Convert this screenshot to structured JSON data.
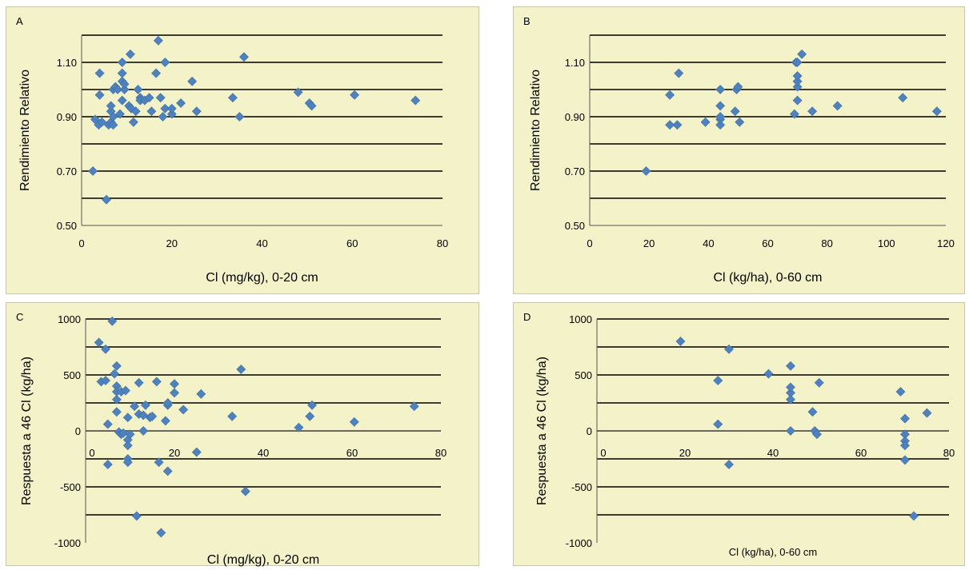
{
  "chart_data": [
    {
      "panel_label": "A",
      "type": "scatter",
      "xlabel": "Cl  (mg/kg), 0-20 cm",
      "ylabel": "Rendimiento Relativo",
      "xlim": [
        0,
        80
      ],
      "ylim": [
        0.5,
        1.2
      ],
      "xticks": [
        "0",
        "20",
        "40",
        "60",
        "80"
      ],
      "yticks": [
        "0.50",
        "0.70",
        "0.90",
        "1.10"
      ],
      "y_grid": [
        0.6,
        0.7,
        0.8,
        0.9,
        1.0,
        1.1,
        1.2
      ],
      "grid": true,
      "points": [
        [
          2.5,
          0.7
        ],
        [
          3,
          0.89
        ],
        [
          3.8,
          0.87
        ],
        [
          4,
          0.98
        ],
        [
          4,
          1.06
        ],
        [
          4.5,
          0.88
        ],
        [
          5.5,
          0.595
        ],
        [
          6,
          0.87
        ],
        [
          6.5,
          0.88
        ],
        [
          6.5,
          0.92
        ],
        [
          6.5,
          0.94
        ],
        [
          7,
          0.87
        ],
        [
          7,
          0.9
        ],
        [
          7,
          1.0
        ],
        [
          7.5,
          1.01
        ],
        [
          8,
          1.0
        ],
        [
          8.5,
          0.91
        ],
        [
          9,
          1.1
        ],
        [
          9,
          1.06
        ],
        [
          9,
          1.03
        ],
        [
          9,
          0.96
        ],
        [
          9.5,
          1.0
        ],
        [
          9.5,
          1.02
        ],
        [
          10.5,
          0.94
        ],
        [
          10.8,
          1.13
        ],
        [
          11,
          0.93
        ],
        [
          11.5,
          0.88
        ],
        [
          12,
          0.92
        ],
        [
          12.5,
          1.0
        ],
        [
          13,
          0.97
        ],
        [
          13,
          0.96
        ],
        [
          14,
          0.96
        ],
        [
          15,
          0.97
        ],
        [
          15.5,
          0.92
        ],
        [
          16.5,
          1.06
        ],
        [
          17,
          1.18
        ],
        [
          17.5,
          0.97
        ],
        [
          18,
          0.9
        ],
        [
          18.5,
          0.93
        ],
        [
          18.5,
          1.1
        ],
        [
          20,
          0.91
        ],
        [
          20,
          0.93
        ],
        [
          22,
          0.95
        ],
        [
          24.5,
          1.03
        ],
        [
          25.5,
          0.92
        ],
        [
          33.5,
          0.97
        ],
        [
          35,
          0.9
        ],
        [
          36,
          1.12
        ],
        [
          48,
          0.99
        ],
        [
          50.5,
          0.95
        ],
        [
          51,
          0.94
        ],
        [
          60.5,
          0.98
        ],
        [
          74,
          0.96
        ]
      ]
    },
    {
      "panel_label": "B",
      "type": "scatter",
      "xlabel": "Cl (kg/ha), 0-60 cm",
      "ylabel": "Rendimiento Relativo",
      "xlim": [
        0,
        120
      ],
      "ylim": [
        0.5,
        1.2
      ],
      "xticks": [
        "0",
        "20",
        "40",
        "60",
        "80",
        "100",
        "120"
      ],
      "yticks": [
        "0.50",
        "0.70",
        "0.90",
        "1.10"
      ],
      "y_grid": [
        0.6,
        0.7,
        0.8,
        0.9,
        1.0,
        1.1,
        1.2
      ],
      "grid": true,
      "points": [
        [
          19,
          0.7
        ],
        [
          27,
          0.87
        ],
        [
          27,
          0.98
        ],
        [
          29.5,
          0.87
        ],
        [
          30,
          1.06
        ],
        [
          39,
          0.88
        ],
        [
          44,
          0.87
        ],
        [
          44,
          0.89
        ],
        [
          44,
          0.9
        ],
        [
          44,
          0.94
        ],
        [
          44,
          1.0
        ],
        [
          49,
          0.92
        ],
        [
          49.5,
          1.0
        ],
        [
          50,
          1.01
        ],
        [
          50.5,
          0.88
        ],
        [
          69,
          0.91
        ],
        [
          69.5,
          1.1
        ],
        [
          70,
          0.96
        ],
        [
          70,
          1.01
        ],
        [
          70,
          1.03
        ],
        [
          70,
          1.05
        ],
        [
          70,
          1.1
        ],
        [
          71.5,
          1.13
        ],
        [
          75,
          0.92
        ],
        [
          83.5,
          0.94
        ],
        [
          105.5,
          0.97
        ],
        [
          117,
          0.92
        ]
      ]
    },
    {
      "panel_label": "C",
      "type": "scatter",
      "xlabel": "Cl (mg/kg),  0-20 cm",
      "ylabel": "Respuesta a 46 Cl (kg/ha)",
      "xlim": [
        0,
        80
      ],
      "ylim": [
        -1000,
        1000
      ],
      "xticks": [
        "0",
        "20",
        "40",
        "60",
        "80"
      ],
      "yticks": [
        "-1000",
        "-500",
        "0",
        "500",
        "1000"
      ],
      "y_grid": [
        -750,
        -500,
        -250,
        0,
        250,
        500,
        750,
        1000
      ],
      "grid": true,
      "points": [
        [
          3,
          790
        ],
        [
          3.5,
          440
        ],
        [
          4.5,
          450
        ],
        [
          4.5,
          730
        ],
        [
          5,
          -300
        ],
        [
          5,
          60
        ],
        [
          6,
          980
        ],
        [
          6.5,
          510
        ],
        [
          7,
          170
        ],
        [
          7,
          400
        ],
        [
          7,
          580
        ],
        [
          7,
          280
        ],
        [
          7,
          350
        ],
        [
          7.5,
          -10
        ],
        [
          8,
          -30
        ],
        [
          8,
          350
        ],
        [
          8.5,
          -20
        ],
        [
          9,
          360
        ],
        [
          9.5,
          -80
        ],
        [
          9.5,
          -130
        ],
        [
          9.5,
          -250
        ],
        [
          9.5,
          -280
        ],
        [
          9.5,
          120
        ],
        [
          10,
          -30
        ],
        [
          11,
          220
        ],
        [
          11.5,
          -760
        ],
        [
          12,
          150
        ],
        [
          12,
          430
        ],
        [
          13,
          0
        ],
        [
          13,
          140
        ],
        [
          13.5,
          230
        ],
        [
          14.5,
          120
        ],
        [
          15,
          130
        ],
        [
          16,
          440
        ],
        [
          16.5,
          -280
        ],
        [
          17,
          -910
        ],
        [
          18,
          90
        ],
        [
          18.5,
          230
        ],
        [
          18.5,
          250
        ],
        [
          18.5,
          -360
        ],
        [
          20,
          420
        ],
        [
          20,
          340
        ],
        [
          22,
          190
        ],
        [
          25,
          -190
        ],
        [
          26,
          330
        ],
        [
          33,
          130
        ],
        [
          35,
          550
        ],
        [
          36,
          -540
        ],
        [
          48,
          30
        ],
        [
          50.5,
          130
        ],
        [
          51,
          230
        ],
        [
          60.5,
          80
        ],
        [
          74,
          220
        ]
      ]
    },
    {
      "panel_label": "D",
      "type": "scatter",
      "xlabel": "Cl  (kg/ha), 0-60 cm",
      "ylabel": "Respuesta a 46 Cl (kg/ha)",
      "xlim": [
        0,
        80
      ],
      "ylim": [
        -1000,
        1000
      ],
      "xticks": [
        "0",
        "20",
        "40",
        "60",
        "80"
      ],
      "yticks": [
        "-1000",
        "-500",
        "0",
        "500",
        "1000"
      ],
      "y_grid": [
        -750,
        -500,
        -250,
        0,
        250,
        500,
        750,
        1000
      ],
      "grid": true,
      "points": [
        [
          19,
          800
        ],
        [
          27.5,
          450
        ],
        [
          27.5,
          60
        ],
        [
          30,
          730
        ],
        [
          30,
          -300
        ],
        [
          39,
          510
        ],
        [
          44,
          580
        ],
        [
          44,
          340
        ],
        [
          44,
          280
        ],
        [
          44,
          0
        ],
        [
          44,
          390
        ],
        [
          49,
          170
        ],
        [
          49.5,
          0
        ],
        [
          50,
          -30
        ],
        [
          50.5,
          430
        ],
        [
          69,
          350
        ],
        [
          70,
          110
        ],
        [
          70,
          -30
        ],
        [
          70,
          -90
        ],
        [
          70,
          -130
        ],
        [
          70,
          -260
        ],
        [
          72,
          -760
        ],
        [
          75,
          160
        ]
      ]
    }
  ]
}
